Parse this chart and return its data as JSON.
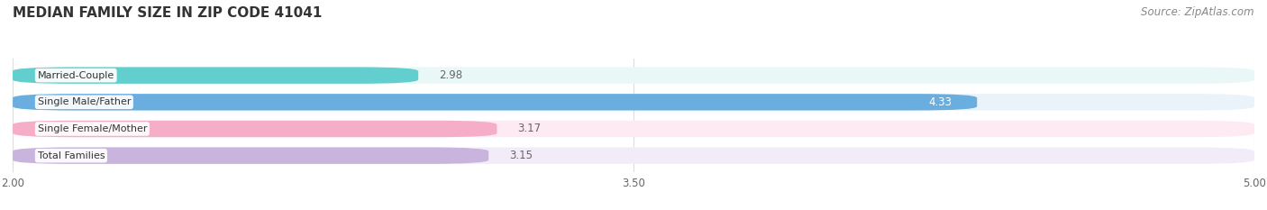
{
  "title": "MEDIAN FAMILY SIZE IN ZIP CODE 41041",
  "source": "Source: ZipAtlas.com",
  "categories": [
    "Married-Couple",
    "Single Male/Father",
    "Single Female/Mother",
    "Total Families"
  ],
  "values": [
    2.98,
    4.33,
    3.17,
    3.15
  ],
  "bar_colors": [
    "#62cece",
    "#6aaee0",
    "#f5adc8",
    "#c8b4dc"
  ],
  "bar_bg_colors": [
    "#eaf7f7",
    "#eaf2fa",
    "#fdeaf2",
    "#f2ecf8"
  ],
  "value_inside_bar": [
    false,
    true,
    false,
    false
  ],
  "xlim_left": 2.0,
  "xlim_right": 5.0,
  "xticks": [
    2.0,
    3.5,
    5.0
  ],
  "value_color_inside": "#ffffff",
  "value_color_outside": "#666666",
  "title_fontsize": 11,
  "source_fontsize": 8.5,
  "label_fontsize": 8,
  "value_fontsize": 8.5,
  "tick_fontsize": 8.5,
  "background_color": "#ffffff",
  "grid_color": "#dddddd"
}
